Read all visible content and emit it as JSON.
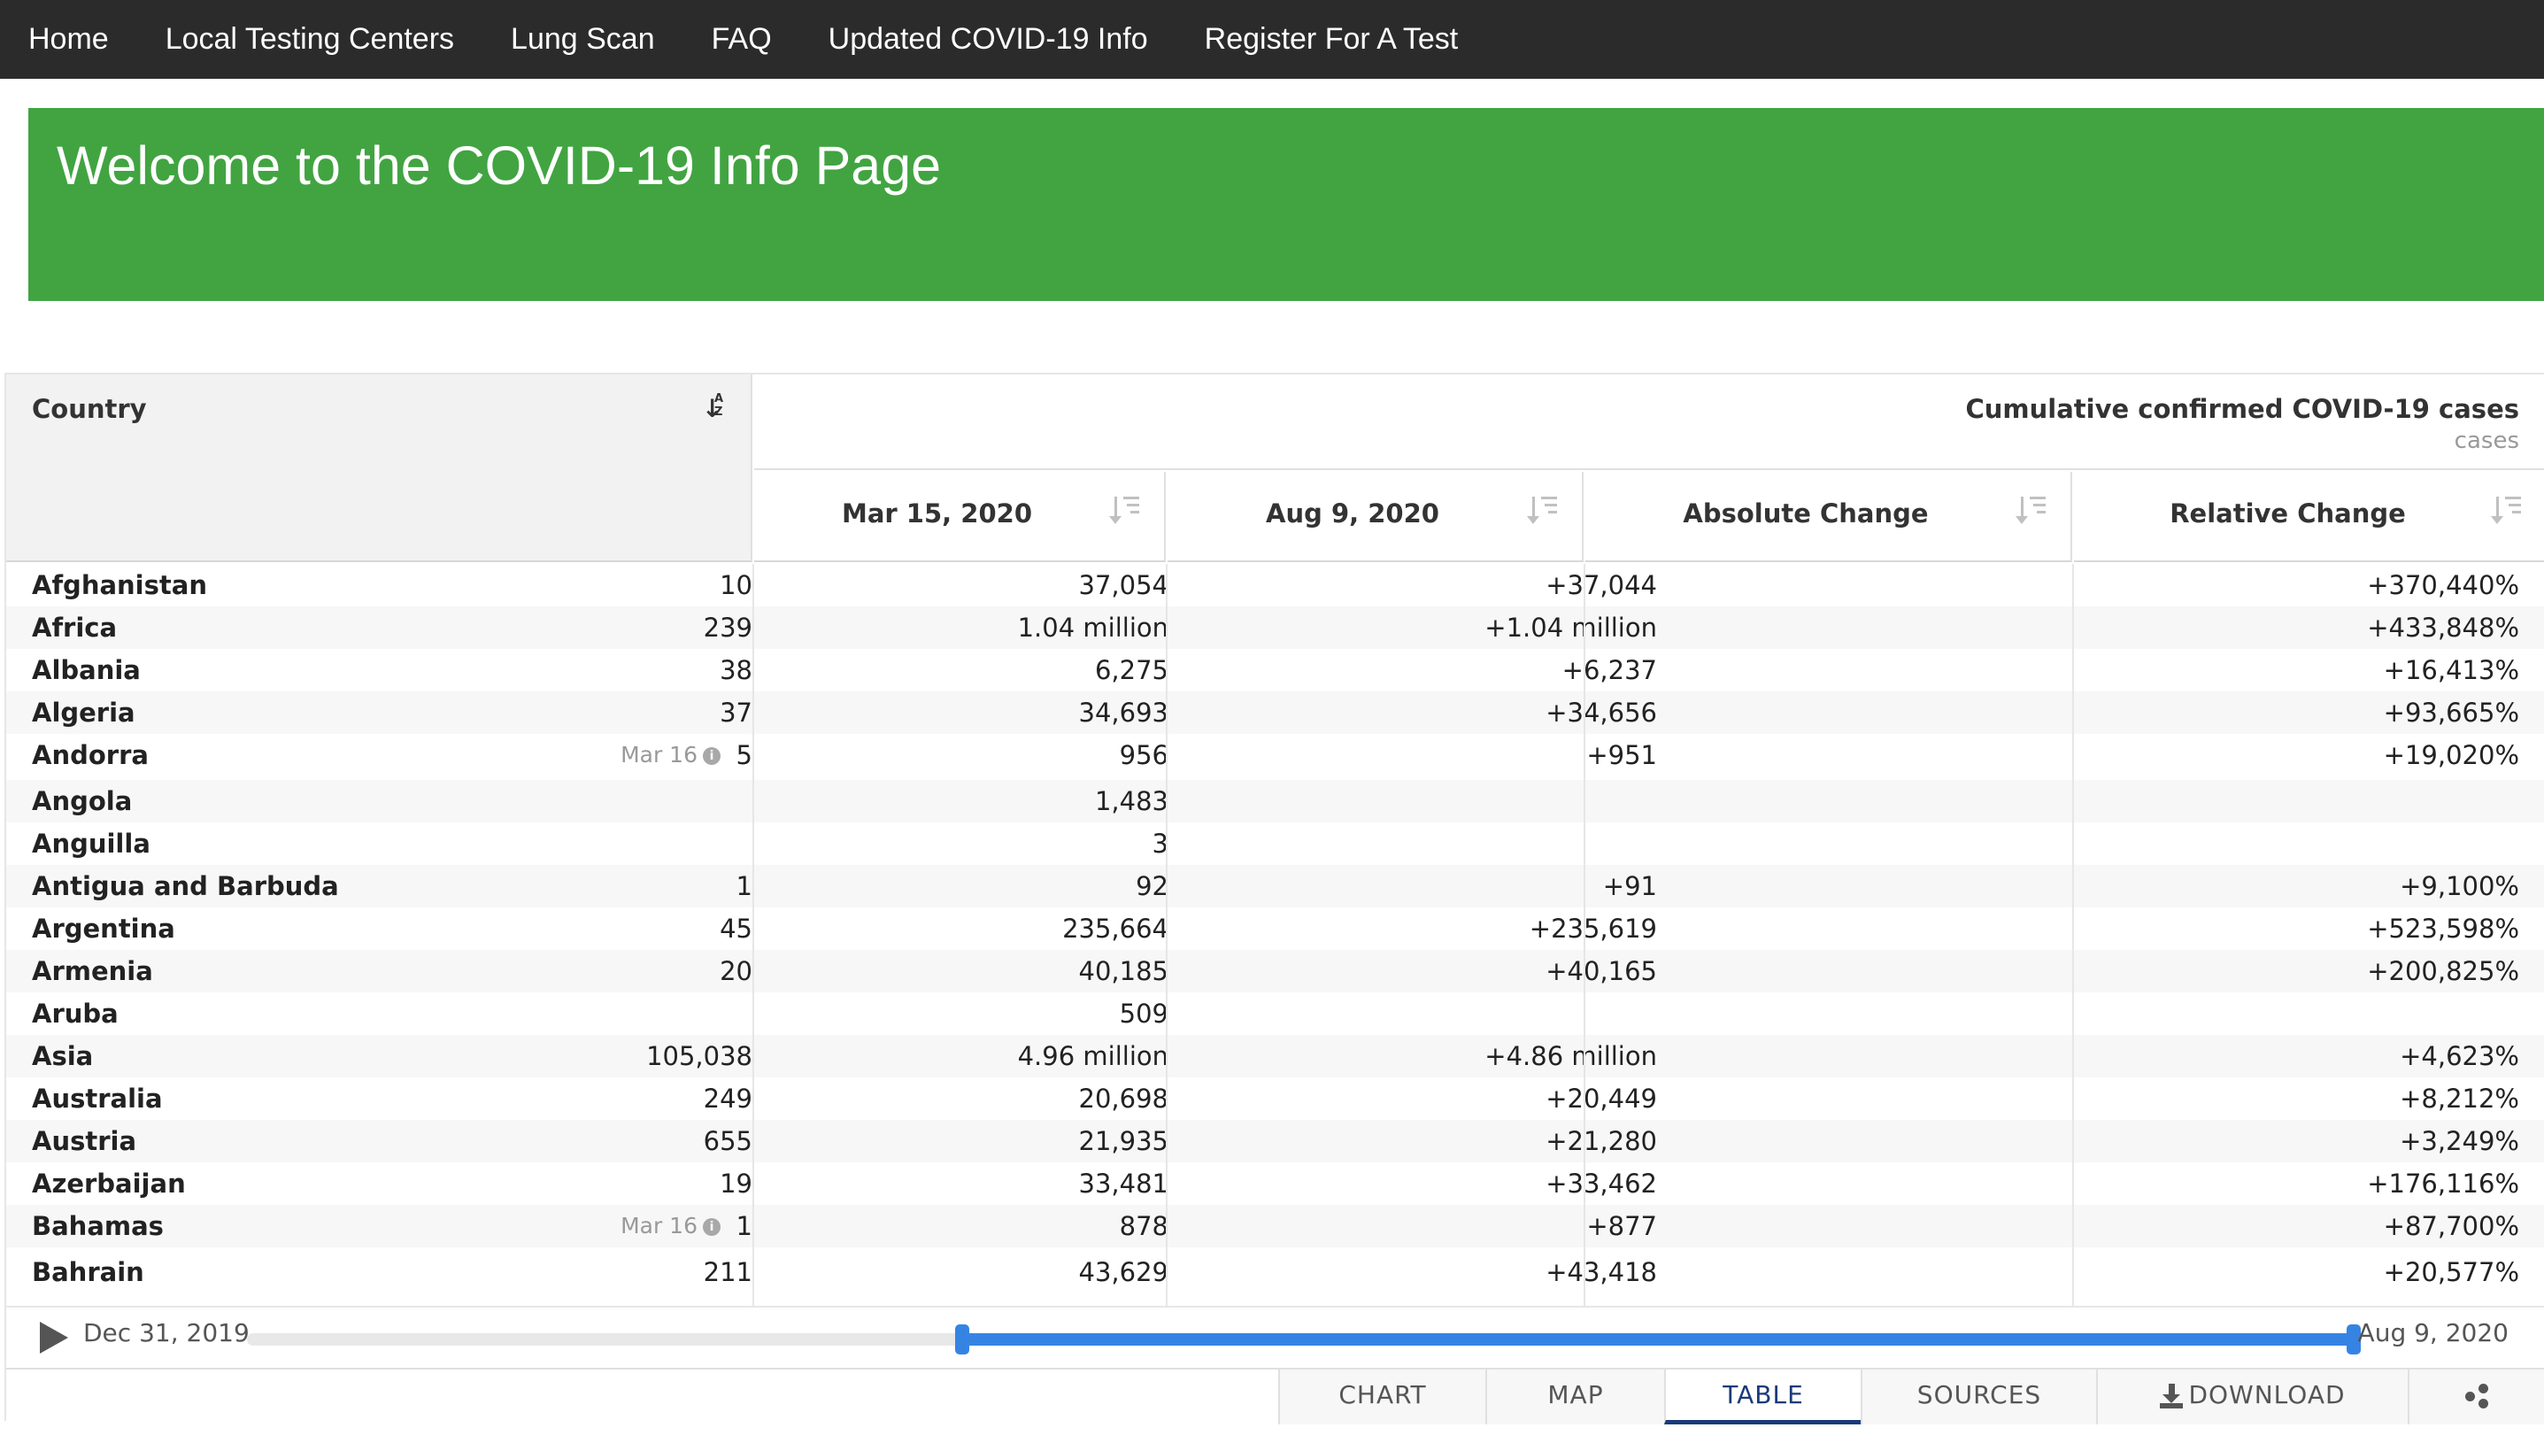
{
  "nav": {
    "items": [
      "Home",
      "Local Testing Centers",
      "Lung Scan",
      "FAQ",
      "Updated COVID-19 Info",
      "Register For A Test"
    ]
  },
  "banner": {
    "title": "Welcome to the COVID-19 Info Page"
  },
  "table": {
    "country_header": "Country",
    "group_title": "Cumulative confirmed COVID-19 cases",
    "group_unit": "cases",
    "columns": [
      "Mar 15, 2020",
      "Aug 9, 2020",
      "Absolute Change",
      "Relative Change"
    ],
    "rows": [
      {
        "country": "Afghanistan",
        "mar": "10",
        "aug": "37,054",
        "abs": "+37,044",
        "rel": "+370,440%"
      },
      {
        "country": "Africa",
        "mar": "239",
        "aug": "1.04 million",
        "abs": "+1.04 million",
        "rel": "+433,848%"
      },
      {
        "country": "Albania",
        "mar": "38",
        "aug": "6,275",
        "abs": "+6,237",
        "rel": "+16,413%"
      },
      {
        "country": "Algeria",
        "mar": "37",
        "aug": "34,693",
        "abs": "+34,656",
        "rel": "+93,665%"
      },
      {
        "country": "Andorra",
        "note": "Mar 16",
        "mar": "5",
        "aug": "956",
        "abs": "+951",
        "rel": "+19,020%"
      },
      {
        "country": "Angola",
        "mar": "",
        "aug": "1,483",
        "abs": "",
        "rel": ""
      },
      {
        "country": "Anguilla",
        "mar": "",
        "aug": "3",
        "abs": "",
        "rel": ""
      },
      {
        "country": "Antigua and Barbuda",
        "mar": "1",
        "aug": "92",
        "abs": "+91",
        "rel": "+9,100%"
      },
      {
        "country": "Argentina",
        "mar": "45",
        "aug": "235,664",
        "abs": "+235,619",
        "rel": "+523,598%"
      },
      {
        "country": "Armenia",
        "mar": "20",
        "aug": "40,185",
        "abs": "+40,165",
        "rel": "+200,825%"
      },
      {
        "country": "Aruba",
        "mar": "",
        "aug": "509",
        "abs": "",
        "rel": ""
      },
      {
        "country": "Asia",
        "mar": "105,038",
        "aug": "4.96 million",
        "abs": "+4.86 million",
        "rel": "+4,623%"
      },
      {
        "country": "Australia",
        "mar": "249",
        "aug": "20,698",
        "abs": "+20,449",
        "rel": "+8,212%"
      },
      {
        "country": "Austria",
        "mar": "655",
        "aug": "21,935",
        "abs": "+21,280",
        "rel": "+3,249%"
      },
      {
        "country": "Azerbaijan",
        "mar": "19",
        "aug": "33,481",
        "abs": "+33,462",
        "rel": "+176,116%"
      },
      {
        "country": "Bahamas",
        "note": "Mar 16",
        "mar": "1",
        "aug": "878",
        "abs": "+877",
        "rel": "+87,700%"
      },
      {
        "country": "Bahrain",
        "mar": "211",
        "aug": "43,629",
        "abs": "+43,418",
        "rel": "+20,577%"
      }
    ]
  },
  "timeline": {
    "start_label": "Dec 31, 2019",
    "end_label": "Aug 9, 2020",
    "range_start_fraction": 0.338,
    "range_end_fraction": 1.0,
    "accent": "#3584e4"
  },
  "tabs": {
    "items": [
      "CHART",
      "MAP",
      "TABLE",
      "SOURCES",
      "DOWNLOAD"
    ],
    "active": "TABLE",
    "share_icon": "share-icon",
    "download_icon": "download-icon"
  },
  "colors": {
    "nav_bg": "#2b2b2b",
    "banner_bg": "#41a441",
    "active_tab": "#1a3a7a"
  }
}
